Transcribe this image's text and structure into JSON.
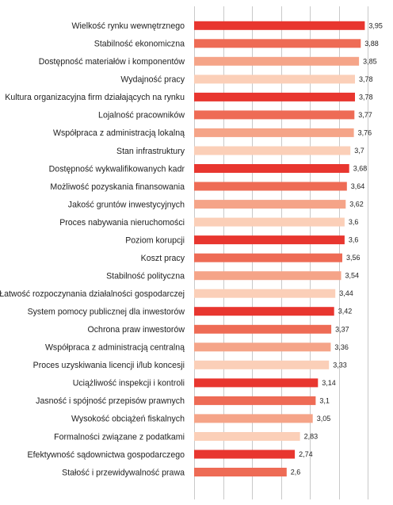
{
  "chart_data": {
    "type": "bar",
    "orientation": "horizontal",
    "categories": [
      "Wielkość rynku wewnętrznego",
      "Stabilność ekonomiczna",
      "Dostępność materiałów i komponentów",
      "Wydajność pracy",
      "Kultura organizacyjna firm działających na rynku",
      "Lojalność pracowników",
      "Współpraca z administracją lokalną",
      "Stan infrastruktury",
      "Dostępność wykwalifikowanych kadr",
      "Możliwość pozyskania finansowania",
      "Jakość gruntów inwestycyjnych",
      "Proces nabywania nieruchomości",
      "Poziom korupcji",
      "Koszt pracy",
      "Stabilność polityczna",
      "Łatwość rozpoczynania działalności gospodarczej",
      "System pomocy publicznej dla inwestorów",
      "Ochrona praw inwestorów",
      "Współpraca z administracją centralną",
      "Proces uzyskiwania licencji i/lub koncesji",
      "Uciążliwość inspekcji i kontroli",
      "Jasność i spójność przepisów prawnych",
      "Wysokość obciążeń fiskalnych",
      "Formalności związane z podatkami",
      "Efektywność sądownictwa gospodarczego",
      "Stałość i przewidywalność prawa"
    ],
    "values": [
      3.95,
      3.88,
      3.85,
      3.78,
      3.78,
      3.77,
      3.76,
      3.7,
      3.68,
      3.64,
      3.62,
      3.6,
      3.6,
      3.56,
      3.54,
      3.44,
      3.42,
      3.37,
      3.36,
      3.33,
      3.14,
      3.1,
      3.05,
      2.83,
      2.74,
      2.6
    ],
    "value_labels": [
      "3,95",
      "3,88",
      "3,85",
      "3,78",
      "3,78",
      "3,77",
      "3,76",
      "3,7",
      "3,68",
      "3,64",
      "3,62",
      "3,6",
      "3,6",
      "3,56",
      "3,54",
      "3,44",
      "3,42",
      "3,37",
      "3,36",
      "3,33",
      "3,14",
      "3,1",
      "3,05",
      "2,83",
      "2,74",
      "2,6"
    ],
    "xlim": [
      1,
      4.3
    ],
    "grid": true,
    "grid_values": [
      1,
      1.5,
      2,
      2.5,
      3,
      3.5,
      4
    ],
    "bar_colors": [
      "#e8362f",
      "#ee6b55",
      "#f5a488",
      "#fbcfb8"
    ]
  }
}
